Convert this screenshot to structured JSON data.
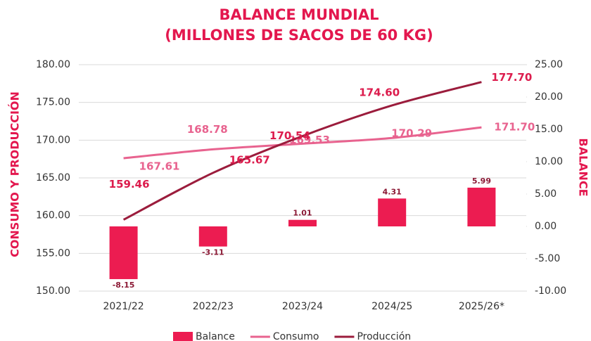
{
  "chart_data": {
    "type": "combo",
    "title": "BALANCE MUNDIAL",
    "subtitle": "(MILLONES DE SACOS DE 60 KG)",
    "ylabel": "CONSUMO Y PRODUCCIÓN",
    "y2label": "BALANCE",
    "categories": [
      "2021/22",
      "2022/23",
      "2023/24",
      "2024/25",
      "2025/26*"
    ],
    "series": [
      {
        "name": "Balance",
        "type": "bar",
        "axis": "y2",
        "color": "#ec1c51",
        "label_color": "#8c1a36",
        "values": [
          -8.15,
          -3.11,
          1.01,
          4.31,
          5.99
        ]
      },
      {
        "name": "Consumo",
        "type": "line",
        "color": "#e8638f",
        "label_color": "#e8638f",
        "values": [
          167.61,
          168.78,
          169.53,
          170.29,
          171.7
        ],
        "value_labels": [
          "167.61",
          "168.78",
          "169.53",
          "170.29",
          "171.70"
        ]
      },
      {
        "name": "Producción",
        "type": "line",
        "color": "#9b1c3c",
        "label_color": "#dc1c4d",
        "values": [
          159.46,
          165.67,
          170.54,
          174.6,
          177.7
        ],
        "value_labels": [
          "159.46",
          "165.67",
          "170.54",
          "174.60",
          "177.70"
        ]
      }
    ],
    "ylim": [
      150,
      180
    ],
    "yticks": [
      {
        "value": 150,
        "label": "150.00"
      },
      {
        "value": 155,
        "label": "155.00"
      },
      {
        "value": 160,
        "label": "160.00"
      },
      {
        "value": 165,
        "label": "165.00"
      },
      {
        "value": 170,
        "label": "170.00"
      },
      {
        "value": 175,
        "label": "175.00"
      },
      {
        "value": 180,
        "label": "180.00"
      }
    ],
    "y2lim": [
      -10,
      25
    ],
    "y2ticks": [
      {
        "value": -10,
        "label": "-10.00"
      },
      {
        "value": -5,
        "label": "-5.00"
      },
      {
        "value": 0,
        "label": "0.00"
      },
      {
        "value": 5,
        "label": "5.00"
      },
      {
        "value": 10,
        "label": "10.00"
      },
      {
        "value": 15,
        "label": "15.00"
      },
      {
        "value": 20,
        "label": "20.00"
      },
      {
        "value": 25,
        "label": "25.00"
      }
    ],
    "grid": true,
    "legend": "bottom"
  }
}
